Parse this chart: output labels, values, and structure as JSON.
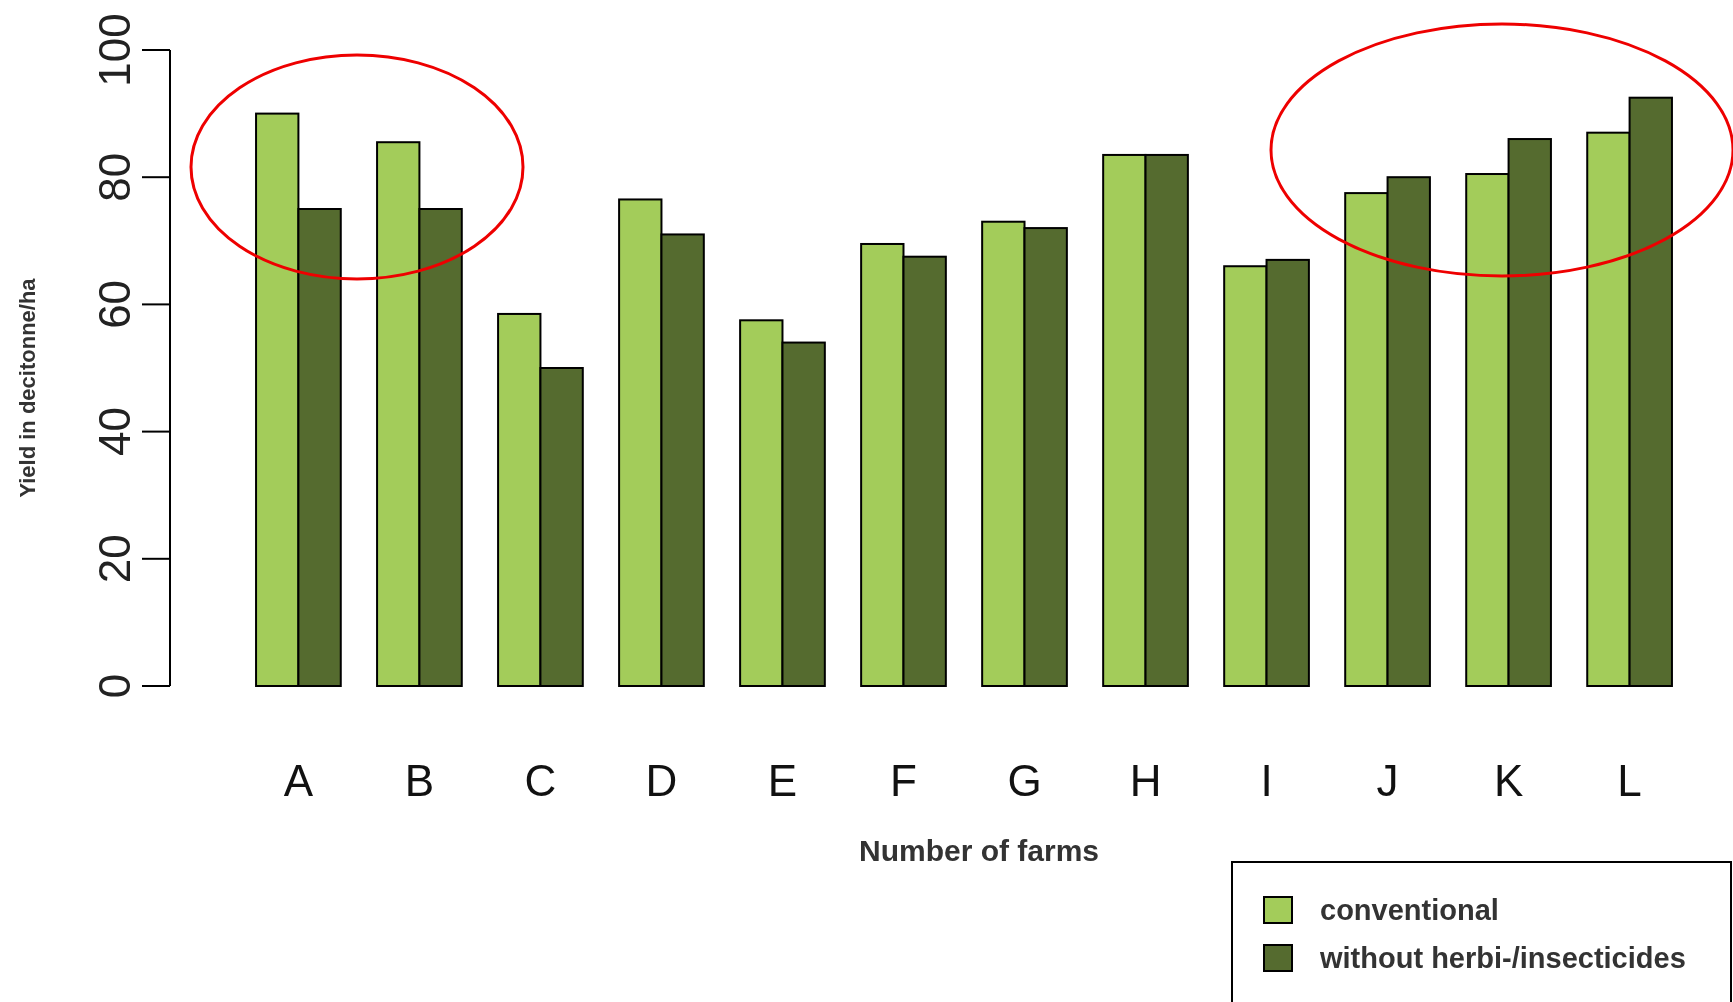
{
  "chart_data": {
    "type": "bar",
    "xlabel": "Number of farms",
    "ylabel": "Yield in decitonne/ha",
    "categories": [
      "A",
      "B",
      "C",
      "D",
      "E",
      "F",
      "G",
      "H",
      "I",
      "J",
      "K",
      "L"
    ],
    "series": [
      {
        "name": "conventional",
        "color": "#a3cc5a",
        "values": [
          90,
          85.5,
          58.5,
          76.5,
          57.5,
          69.5,
          73,
          83.5,
          66,
          77.5,
          80.5,
          87
        ]
      },
      {
        "name": "without herbi-/insecticides",
        "color": "#556b2f",
        "values": [
          75,
          75,
          50,
          71,
          54,
          67.5,
          72,
          83.5,
          67,
          80,
          86,
          92.5
        ]
      }
    ],
    "ylim": [
      0,
      100
    ],
    "yticks": [
      0,
      20,
      40,
      60,
      80,
      100
    ],
    "grid": false,
    "legend": "bottom right"
  }
}
